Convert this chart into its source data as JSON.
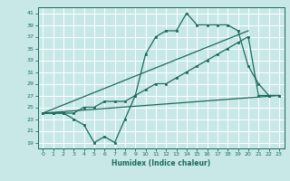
{
  "xlabel": "Humidex (Indice chaleur)",
  "bg_color": "#c8e8e8",
  "line_color": "#1a6b5a",
  "grid_color": "#ffffff",
  "xlim": [
    -0.5,
    23.5
  ],
  "ylim": [
    18,
    42
  ],
  "yticks": [
    19,
    21,
    23,
    25,
    27,
    29,
    31,
    33,
    35,
    37,
    39,
    41
  ],
  "xticks": [
    0,
    1,
    2,
    3,
    4,
    5,
    6,
    7,
    8,
    9,
    10,
    11,
    12,
    13,
    14,
    15,
    16,
    17,
    18,
    19,
    20,
    21,
    22,
    23
  ],
  "line1_x": [
    0,
    1,
    2,
    3,
    4,
    5,
    6,
    7,
    8,
    9,
    10,
    11,
    12,
    13,
    14,
    15,
    16,
    17,
    18,
    19,
    20,
    21,
    22,
    23
  ],
  "line1_y": [
    24,
    24,
    24,
    23,
    22,
    19,
    20,
    19,
    23,
    27,
    34,
    37,
    38,
    38,
    41,
    39,
    39,
    39,
    39,
    38,
    32,
    29,
    27,
    27
  ],
  "line2_x": [
    0,
    1,
    2,
    3,
    4,
    5,
    6,
    7,
    8,
    9,
    10,
    11,
    12,
    13,
    14,
    15,
    16,
    17,
    18,
    19,
    20,
    21,
    22,
    23
  ],
  "line2_y": [
    24,
    24,
    24,
    24,
    25,
    25,
    26,
    26,
    26,
    27,
    28,
    29,
    29,
    30,
    31,
    32,
    33,
    34,
    35,
    36,
    37,
    27,
    27,
    27
  ],
  "line3_x": [
    0,
    23
  ],
  "line3_y": [
    24,
    27
  ],
  "line4_x": [
    0,
    20
  ],
  "line4_y": [
    24,
    38
  ]
}
